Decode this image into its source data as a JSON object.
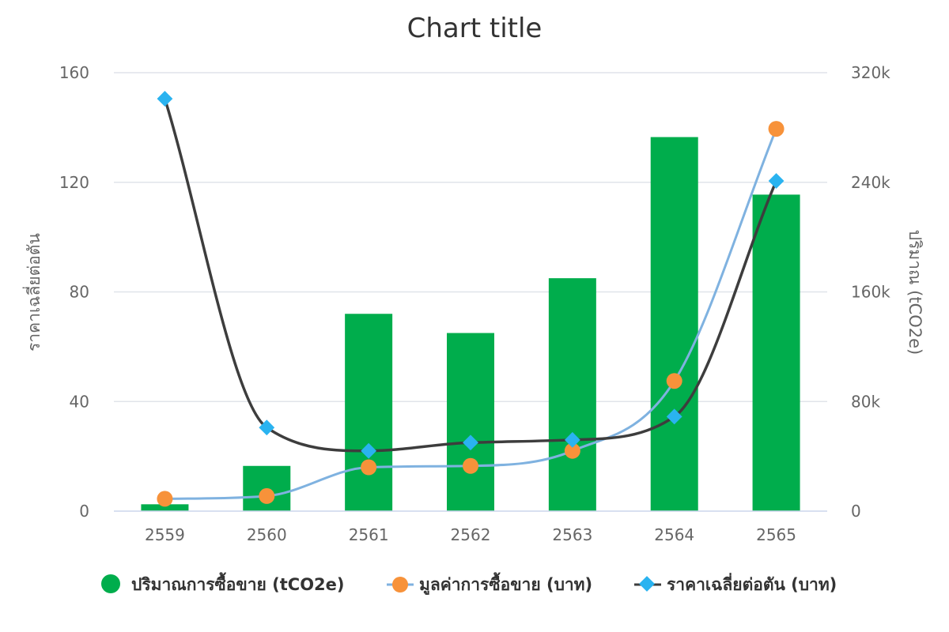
{
  "chart_data": {
    "type": "bar",
    "title": "Chart title",
    "categories": [
      "2559",
      "2560",
      "2561",
      "2562",
      "2563",
      "2564",
      "2565"
    ],
    "y_left": {
      "label": "ราคาเฉลี่ยต่อตัน",
      "ticks": [
        "0",
        "40",
        "80",
        "120",
        "160"
      ],
      "ylim": [
        0,
        160
      ]
    },
    "y_right": {
      "label": "ปริมาณ (tCO2e)",
      "ticks": [
        "0",
        "80k",
        "160k",
        "240k",
        "320k"
      ],
      "ylim": [
        0,
        320000
      ]
    },
    "grid": true,
    "legend_position": "bottom",
    "series": [
      {
        "name": "ปริมาณการซื้อขาย (tCO2e)",
        "type": "bar",
        "axis": "right",
        "color": "#00ad4c",
        "values": [
          5000,
          33000,
          144000,
          130000,
          170000,
          273000,
          231000
        ]
      },
      {
        "name": "มูลค่าการซื้อขาย (บาท)",
        "type": "line",
        "axis": "left",
        "color": "#7fb2e0",
        "marker_color": "#f7923a",
        "marker": "circle",
        "values": [
          4.5,
          5.5,
          16,
          16.5,
          22,
          47.5,
          139.5
        ]
      },
      {
        "name": "ราคาเฉลี่ยต่อตัน (บาท)",
        "type": "line",
        "axis": "left",
        "color": "#3d3d3d",
        "marker_color": "#2ab3f0",
        "marker": "diamond",
        "values": [
          150.5,
          30.5,
          22,
          25,
          26,
          34.5,
          120.5
        ]
      }
    ]
  }
}
